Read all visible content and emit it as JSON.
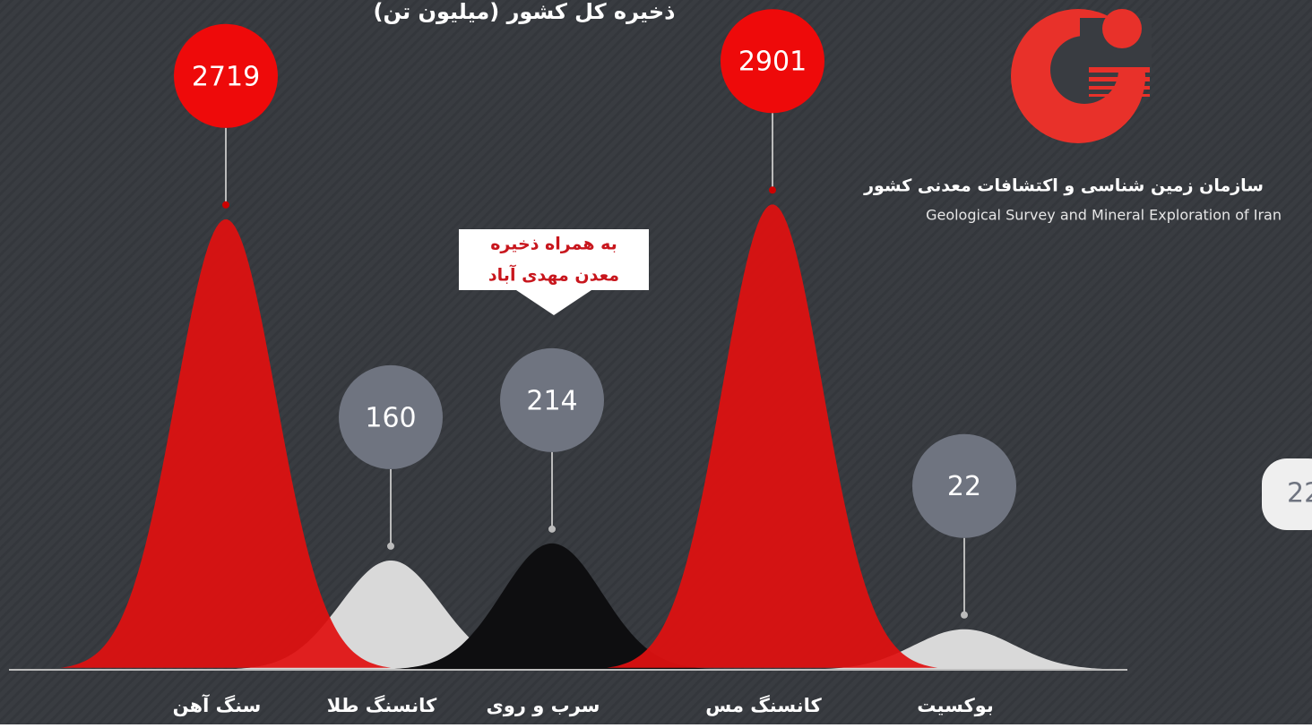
{
  "chart_data": {
    "type": "bell",
    "title": "ذخیره کل کشور (میلیون تن)",
    "categories": [
      "سنگ آهن",
      "کانسنگ طلا",
      "سرب و روی",
      "کانسنگ مس",
      "بوکسیت"
    ],
    "values": [
      2719,
      160,
      214,
      2901,
      22
    ],
    "colors": [
      "#e01010",
      "#d9d9d9",
      "#0e0e10",
      "#e01010",
      "#d9d9d9"
    ],
    "bubble_colors": [
      "#ee0a0a",
      "#6f7480",
      "#6f7480",
      "#ee0a0a",
      "#6f7480"
    ],
    "scale": "sqrt",
    "callout": [
      "به همراه ذخیره",
      "معدن مهدی آباد"
    ],
    "organization": {
      "name_fa": "سازمان زمین شناسی و اکتشافات معدنی کشور",
      "name_en": "Geological Survey and Mineral Exploration of Iran"
    },
    "side_badge": "22"
  }
}
